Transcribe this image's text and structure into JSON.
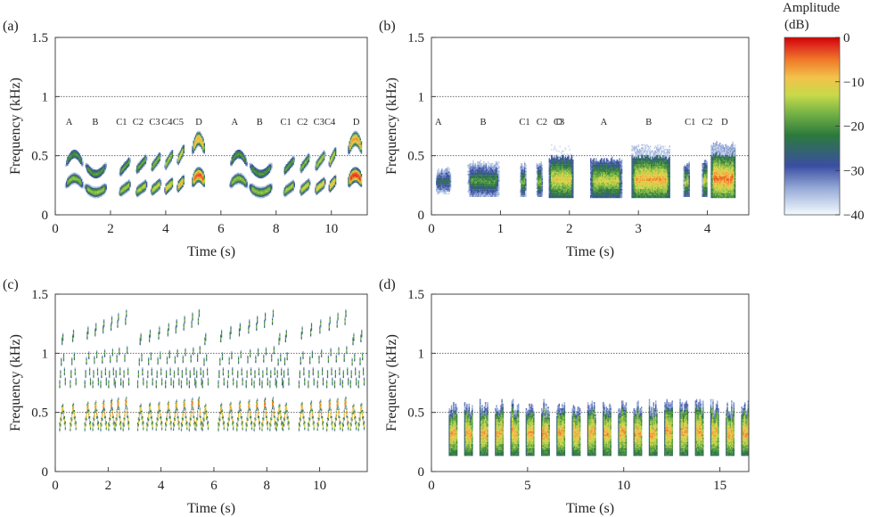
{
  "figure": {
    "colorbar": {
      "title_line1": "Amplitude",
      "title_line2": "(dB)",
      "ticks": [
        "0",
        "−10",
        "−20",
        "−30",
        "−40"
      ],
      "tick_values": [
        0,
        -10,
        -20,
        -30,
        -40
      ],
      "range": [
        -40,
        0
      ],
      "colormap": [
        "#f4fbff",
        "#3a4ea3",
        "#2c7a3c",
        "#c8d94a",
        "#f3c24a",
        "#e03020",
        "#d40000"
      ]
    }
  },
  "chart_data": [
    {
      "type": "heatmap",
      "panel_label": "(a)",
      "xlabel": "Time (s)",
      "ylabel": "Frequency (kHz)",
      "xlim": [
        0,
        11.3
      ],
      "ylim": [
        0,
        1.5
      ],
      "xticks": [
        0,
        2,
        4,
        6,
        8,
        10
      ],
      "xtick_labels": [
        "0",
        "2",
        "4",
        "6",
        "8",
        "10"
      ],
      "yticks": [
        0,
        0.5,
        1,
        1.5
      ],
      "ytick_labels": [
        "0",
        "0.5",
        "1",
        "1.5"
      ],
      "reference_lines_khz": [
        0.5,
        1.0
      ],
      "segment_labels": [
        {
          "text": "A",
          "t": 0.5
        },
        {
          "text": "B",
          "t": 1.45
        },
        {
          "text": "C1",
          "t": 2.4
        },
        {
          "text": "C2",
          "t": 3.0
        },
        {
          "text": "C3",
          "t": 3.6
        },
        {
          "text": "C4",
          "t": 4.05
        },
        {
          "text": "C5",
          "t": 4.45
        },
        {
          "text": "D",
          "t": 5.2
        },
        {
          "text": "A",
          "t": 6.5
        },
        {
          "text": "B",
          "t": 7.4
        },
        {
          "text": "C1",
          "t": 8.35
        },
        {
          "text": "C2",
          "t": 8.95
        },
        {
          "text": "C3",
          "t": 9.55
        },
        {
          "text": "C4",
          "t": 9.95
        },
        {
          "text": "D",
          "t": 10.9
        }
      ],
      "elements": [
        {
          "t0": 0.35,
          "t1": 1.0,
          "f1": 0.25,
          "f2": 0.42,
          "bw": 0.05,
          "shape": "arch",
          "peak": -14
        },
        {
          "t0": 1.05,
          "t1": 1.85,
          "f1": 0.23,
          "f2": 0.41,
          "bw": 0.05,
          "shape": "valley",
          "peak": -14
        },
        {
          "t0": 2.3,
          "t1": 2.7,
          "f1": 0.22,
          "f2": 0.4,
          "bw": 0.05,
          "shape": "rise",
          "peak": -13
        },
        {
          "t0": 2.9,
          "t1": 3.3,
          "f1": 0.22,
          "f2": 0.42,
          "bw": 0.05,
          "shape": "rise",
          "peak": -12
        },
        {
          "t0": 3.45,
          "t1": 3.8,
          "f1": 0.23,
          "f2": 0.44,
          "bw": 0.05,
          "shape": "rise",
          "peak": -11
        },
        {
          "t0": 3.95,
          "t1": 4.25,
          "f1": 0.24,
          "f2": 0.46,
          "bw": 0.05,
          "shape": "rise",
          "peak": -9
        },
        {
          "t0": 4.4,
          "t1": 4.65,
          "f1": 0.26,
          "f2": 0.5,
          "bw": 0.05,
          "shape": "rise",
          "peak": -7
        },
        {
          "t0": 4.95,
          "t1": 5.4,
          "f1": 0.28,
          "f2": 0.55,
          "bw": 0.06,
          "shape": "arch",
          "peak": -2
        },
        {
          "t0": 6.3,
          "t1": 6.95,
          "f1": 0.25,
          "f2": 0.42,
          "bw": 0.05,
          "shape": "arch",
          "peak": -14
        },
        {
          "t0": 7.0,
          "t1": 7.85,
          "f1": 0.23,
          "f2": 0.41,
          "bw": 0.05,
          "shape": "valley",
          "peak": -14
        },
        {
          "t0": 8.25,
          "t1": 8.65,
          "f1": 0.22,
          "f2": 0.41,
          "bw": 0.05,
          "shape": "rise",
          "peak": -13
        },
        {
          "t0": 8.85,
          "t1": 9.2,
          "f1": 0.23,
          "f2": 0.43,
          "bw": 0.05,
          "shape": "rise",
          "peak": -11
        },
        {
          "t0": 9.4,
          "t1": 9.75,
          "f1": 0.24,
          "f2": 0.45,
          "bw": 0.05,
          "shape": "rise",
          "peak": -9
        },
        {
          "t0": 9.9,
          "t1": 10.15,
          "f1": 0.26,
          "f2": 0.48,
          "bw": 0.05,
          "shape": "rise",
          "peak": -7
        },
        {
          "t0": 10.6,
          "t1": 11.1,
          "f1": 0.28,
          "f2": 0.55,
          "bw": 0.06,
          "shape": "arch",
          "peak": -1
        }
      ]
    },
    {
      "type": "heatmap",
      "panel_label": "(b)",
      "xlabel": "Time (s)",
      "ylabel": "Frequency (kHz)",
      "xlim": [
        0,
        4.6
      ],
      "ylim": [
        0,
        1.5
      ],
      "xticks": [
        0,
        1,
        2,
        3,
        4
      ],
      "xtick_labels": [
        "0",
        "1",
        "2",
        "3",
        "4"
      ],
      "yticks": [
        0,
        0.5,
        1,
        1.5
      ],
      "ytick_labels": [
        "0",
        "0.5",
        "1",
        "1.5"
      ],
      "reference_lines_khz": [
        0.5,
        1.0
      ],
      "segment_labels": [
        {
          "text": "A",
          "t": 0.1
        },
        {
          "text": "B",
          "t": 0.75
        },
        {
          "text": "C1",
          "t": 1.35
        },
        {
          "text": "C2",
          "t": 1.6
        },
        {
          "text": "C3",
          "t": 1.85
        },
        {
          "text": "D",
          "t": 1.85
        },
        {
          "text": "A",
          "t": 2.5
        },
        {
          "text": "B",
          "t": 3.15
        },
        {
          "text": "C1",
          "t": 3.75
        },
        {
          "text": "C2",
          "t": 4.0
        },
        {
          "text": "D",
          "t": 4.25
        }
      ],
      "blocks": [
        {
          "t0": 0.05,
          "t1": 0.28,
          "lo": 0.18,
          "hi": 0.48,
          "peak": -20
        },
        {
          "t0": 0.52,
          "t1": 0.98,
          "lo": 0.16,
          "hi": 0.52,
          "peak": -16
        },
        {
          "t0": 1.28,
          "t1": 1.36,
          "lo": 0.16,
          "hi": 0.5,
          "peak": -14
        },
        {
          "t0": 1.52,
          "t1": 1.6,
          "lo": 0.16,
          "hi": 0.5,
          "peak": -13
        },
        {
          "t0": 1.7,
          "t1": 2.05,
          "lo": 0.15,
          "hi": 0.58,
          "peak": -7
        },
        {
          "t0": 2.3,
          "t1": 2.75,
          "lo": 0.15,
          "hi": 0.55,
          "peak": -9
        },
        {
          "t0": 2.9,
          "t1": 3.45,
          "lo": 0.15,
          "hi": 0.58,
          "peak": -4
        },
        {
          "t0": 3.65,
          "t1": 3.73,
          "lo": 0.16,
          "hi": 0.5,
          "peak": -11
        },
        {
          "t0": 3.92,
          "t1": 3.99,
          "lo": 0.16,
          "hi": 0.52,
          "peak": -10
        },
        {
          "t0": 4.05,
          "t1": 4.4,
          "lo": 0.15,
          "hi": 0.6,
          "peak": -2
        }
      ]
    },
    {
      "type": "heatmap",
      "panel_label": "(c)",
      "xlabel": "Time (s)",
      "ylabel": "Frequency (kHz)",
      "xlim": [
        0,
        11.8
      ],
      "ylim": [
        0,
        1.5
      ],
      "xticks": [
        0,
        2,
        4,
        6,
        8,
        10
      ],
      "xtick_labels": [
        "0",
        "2",
        "4",
        "6",
        "8",
        "10"
      ],
      "yticks": [
        0,
        0.5,
        1,
        1.5
      ],
      "ytick_labels": [
        "0",
        "0.5",
        "1",
        "1.5"
      ],
      "reference_lines_khz": [
        0.5,
        1.0
      ],
      "notes_t": [
        0.15,
        0.55,
        1.1,
        1.4,
        1.7,
        2.0,
        2.25,
        2.55,
        3.1,
        3.45,
        3.8,
        4.15,
        4.45,
        4.75,
        5.05,
        5.3,
        5.55,
        6.15,
        6.5,
        6.85,
        7.2,
        7.5,
        7.8,
        8.1,
        8.35,
        8.6,
        9.2,
        9.55,
        9.9,
        10.25,
        10.55,
        10.85,
        11.15,
        11.45
      ]
    },
    {
      "type": "heatmap",
      "panel_label": "(d)",
      "xlabel": "Time (s)",
      "ylabel": "Frequency (kHz)",
      "xlim": [
        0,
        16.5
      ],
      "ylim": [
        0,
        1.5
      ],
      "xticks": [
        0,
        5,
        10,
        15
      ],
      "xtick_labels": [
        "0",
        "5",
        "10",
        "15"
      ],
      "yticks": [
        0,
        0.5,
        1,
        1.5
      ],
      "ytick_labels": [
        "0",
        "0.5",
        "1",
        "1.5"
      ],
      "reference_lines_khz": [
        0.5,
        1.0
      ],
      "pulse_period_s": 0.8,
      "pulse_start_s": 0.9,
      "pulse_end_s": 16.3
    }
  ]
}
